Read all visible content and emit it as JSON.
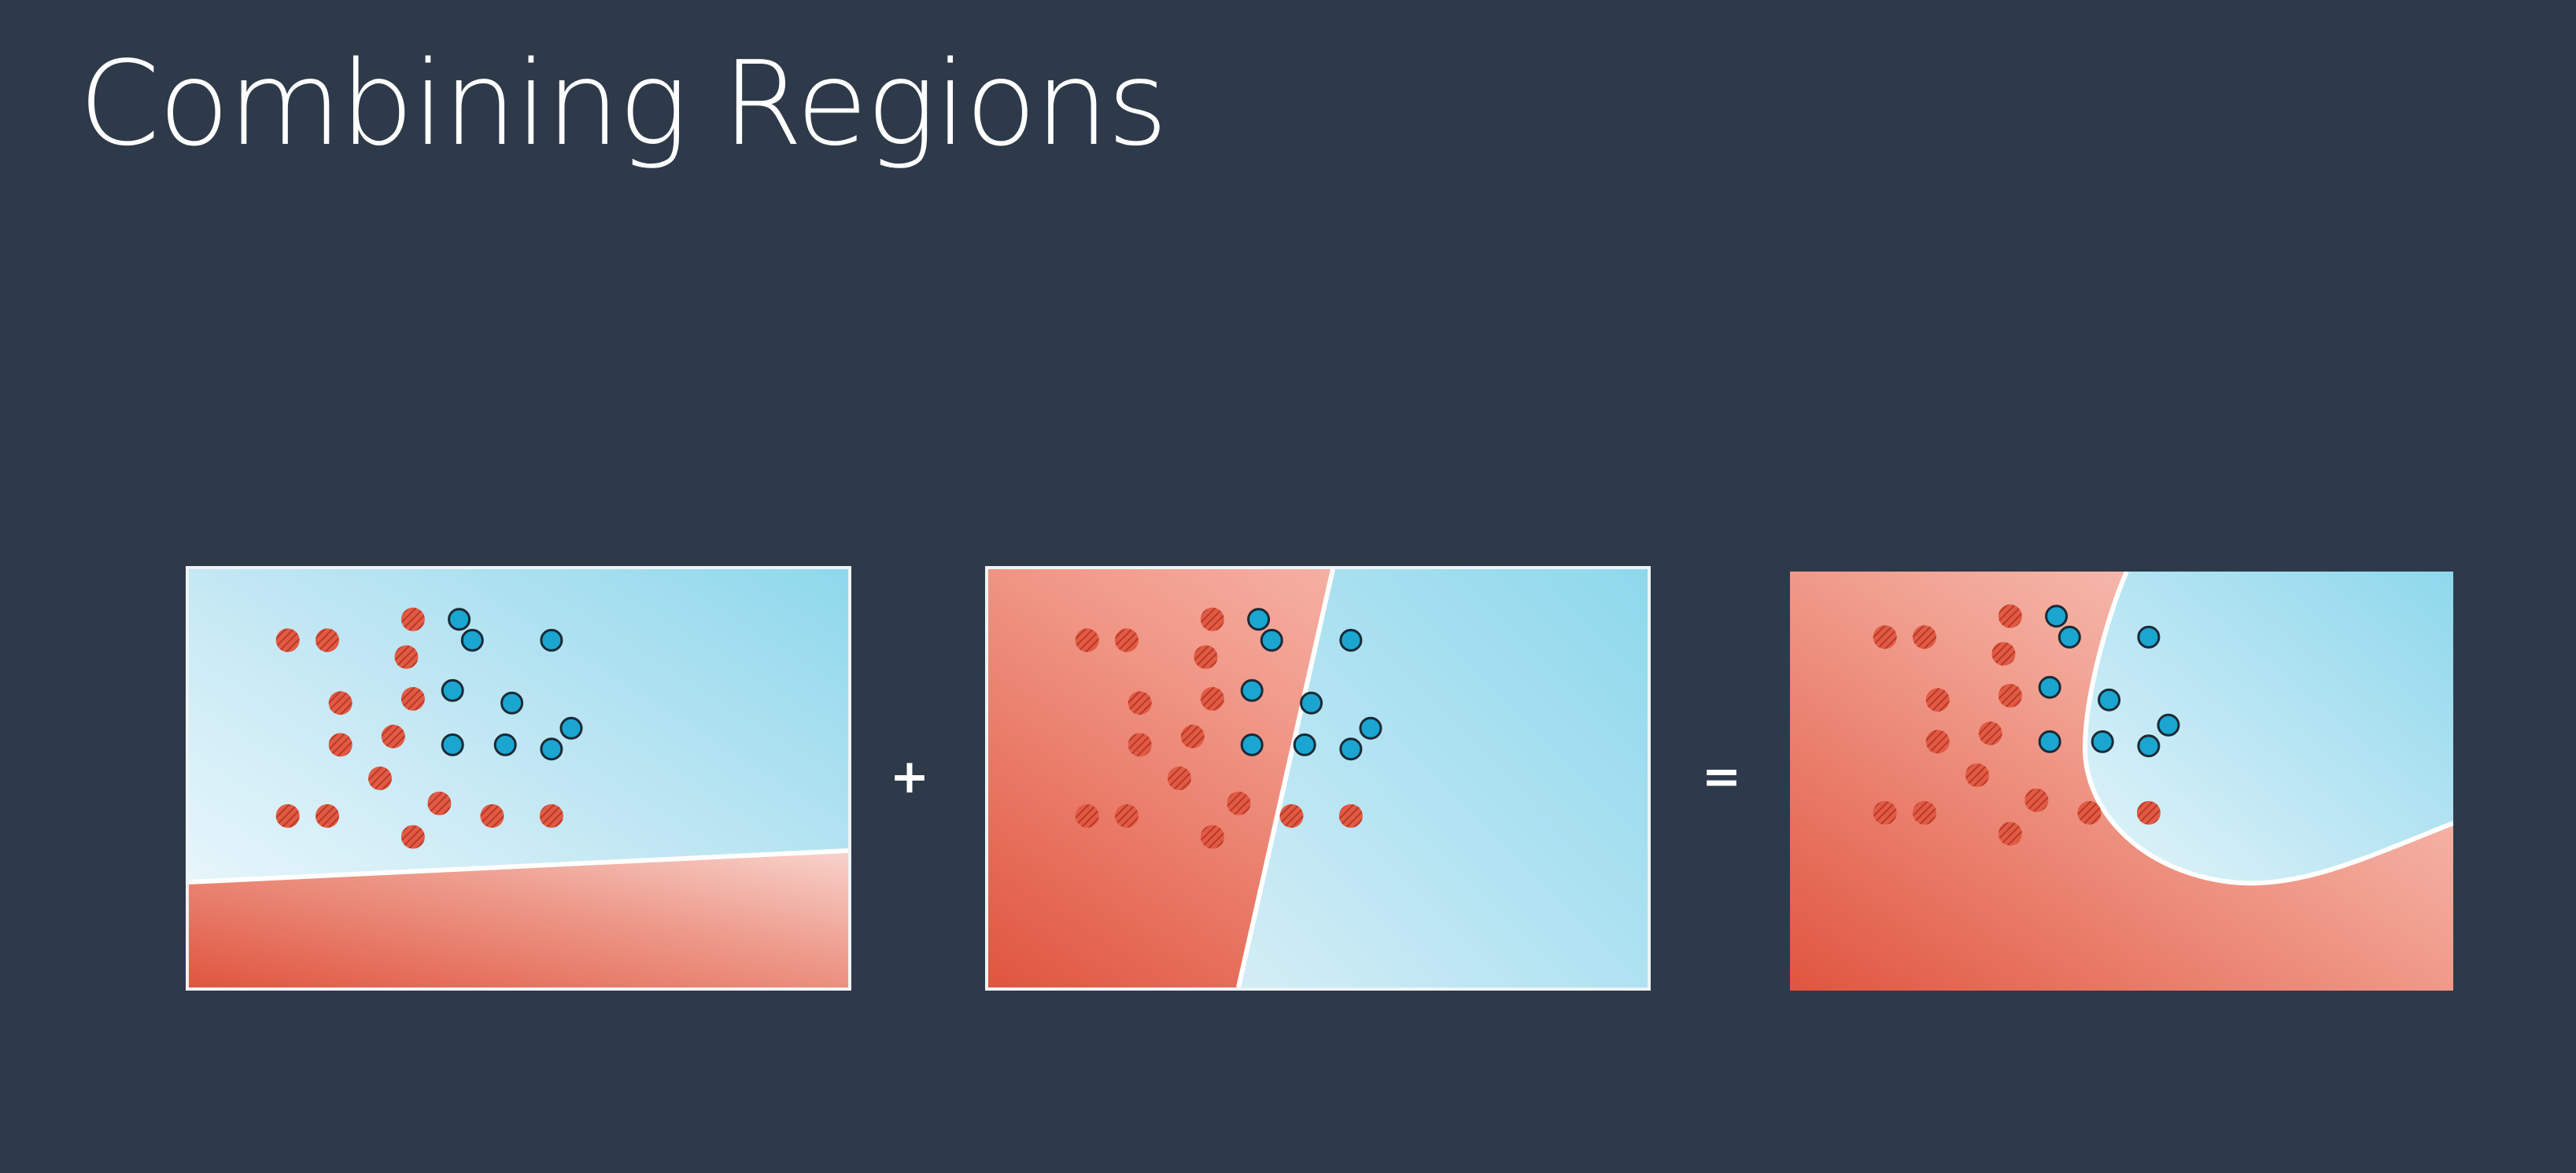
{
  "slide": {
    "title": "Combining Regions",
    "operators": {
      "plus": "+",
      "equals": "="
    }
  },
  "colors": {
    "background": "#2e3a4a",
    "red_region_dark": "#e0553f",
    "red_region_light": "#f8d3cc",
    "blue_region_light": "#f2fafd",
    "blue_region_dark": "#8ed8ec",
    "red_point": "#e35a44",
    "blue_point": "#1aa6d1",
    "boundary": "#ffffff"
  },
  "points": {
    "red": [
      [
        1.5,
        8.3
      ],
      [
        2.1,
        8.3
      ],
      [
        3.4,
        8.8
      ],
      [
        3.3,
        7.9
      ],
      [
        2.3,
        6.8
      ],
      [
        3.4,
        6.9
      ],
      [
        2.3,
        5.8
      ],
      [
        3.1,
        6.0
      ],
      [
        2.9,
        5.0
      ],
      [
        3.8,
        4.4
      ],
      [
        1.5,
        4.1
      ],
      [
        2.1,
        4.1
      ],
      [
        3.4,
        3.6
      ],
      [
        4.6,
        4.1
      ],
      [
        5.5,
        4.1
      ]
    ],
    "blue": [
      [
        4.1,
        8.8
      ],
      [
        4.3,
        8.3
      ],
      [
        5.5,
        8.3
      ],
      [
        4.0,
        7.1
      ],
      [
        4.9,
        6.8
      ],
      [
        5.8,
        6.2
      ],
      [
        4.0,
        5.8
      ],
      [
        4.8,
        5.8
      ],
      [
        5.5,
        5.7
      ]
    ]
  }
}
